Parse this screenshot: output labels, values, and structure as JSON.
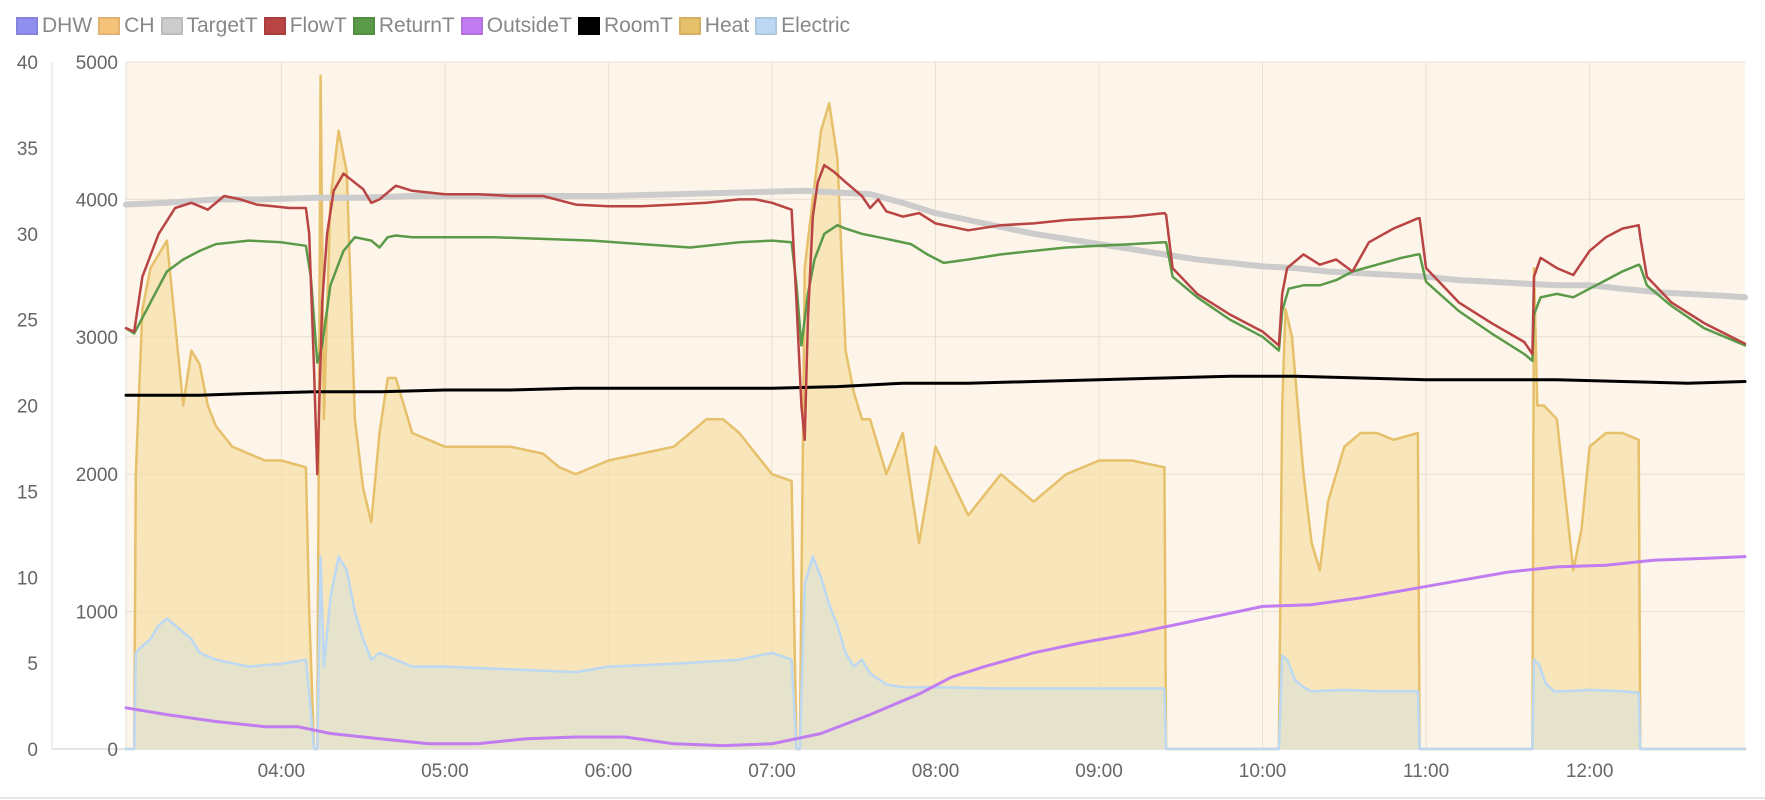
{
  "chart_data": {
    "type": "line",
    "legend_position": "top-left",
    "legend": [
      {
        "key": "dhw",
        "label": "DHW",
        "color": "#8f8fef"
      },
      {
        "key": "ch",
        "label": "CH",
        "color": "#f5c27a"
      },
      {
        "key": "target",
        "label": "TargetT",
        "color": "#cccccc"
      },
      {
        "key": "flow",
        "label": "FlowT",
        "color": "#b94444"
      },
      {
        "key": "return",
        "label": "ReturnT",
        "color": "#5a9a48"
      },
      {
        "key": "outside",
        "label": "OutsideT",
        "color": "#c07cf0"
      },
      {
        "key": "room",
        "label": "RoomT",
        "color": "#000000"
      },
      {
        "key": "heat",
        "label": "Heat",
        "color": "#e6c06a"
      },
      {
        "key": "electric",
        "label": "Electric",
        "color": "#bcd8f2"
      }
    ],
    "x_ticks": [
      "04:00",
      "05:00",
      "06:00",
      "07:00",
      "08:00",
      "09:00",
      "10:00",
      "11:00",
      "12:00"
    ],
    "x_range_hours": [
      3.05,
      12.95
    ],
    "y_left_temp": {
      "ticks": [
        0,
        5,
        10,
        15,
        20,
        25,
        30,
        35,
        40
      ],
      "range": [
        0,
        40
      ]
    },
    "y_left_power": {
      "ticks": [
        0,
        1000,
        2000,
        3000,
        4000,
        5000
      ],
      "range": [
        0,
        5000
      ]
    },
    "grid": true,
    "background_color": "#fdf5ea",
    "series": [
      {
        "name": "FlowT",
        "axis": "temp",
        "color": "#b94444",
        "x": [
          3.05,
          3.1,
          3.15,
          3.25,
          3.35,
          3.45,
          3.55,
          3.65,
          3.75,
          3.85,
          3.95,
          4.05,
          4.15,
          4.17,
          4.2,
          4.22,
          4.25,
          4.28,
          4.32,
          4.38,
          4.42,
          4.5,
          4.55,
          4.6,
          4.7,
          4.8,
          5.0,
          5.2,
          5.4,
          5.6,
          5.8,
          6.0,
          6.2,
          6.4,
          6.6,
          6.8,
          6.9,
          7.0,
          7.12,
          7.15,
          7.18,
          7.2,
          7.22,
          7.25,
          7.28,
          7.32,
          7.38,
          7.45,
          7.55,
          7.6,
          7.65,
          7.7,
          7.8,
          7.9,
          8.0,
          8.2,
          8.4,
          8.6,
          8.8,
          9.0,
          9.2,
          9.4,
          9.41,
          9.45,
          9.6,
          9.8,
          10.0,
          10.1,
          10.12,
          10.15,
          10.25,
          10.35,
          10.45,
          10.55,
          10.65,
          10.8,
          10.95,
          10.96,
          11.0,
          11.2,
          11.4,
          11.6,
          11.65,
          11.66,
          11.7,
          11.8,
          11.9,
          12.0,
          12.1,
          12.2,
          12.3,
          12.31,
          12.35,
          12.5,
          12.7,
          12.95
        ],
        "y": [
          24.5,
          24.3,
          27.5,
          30.0,
          31.5,
          31.8,
          31.4,
          32.2,
          32.0,
          31.7,
          31.6,
          31.5,
          31.5,
          30.0,
          22.0,
          16.0,
          26.0,
          30.0,
          32.5,
          33.5,
          33.2,
          32.6,
          31.8,
          32.0,
          32.8,
          32.5,
          32.3,
          32.3,
          32.2,
          32.2,
          31.7,
          31.6,
          31.6,
          31.7,
          31.8,
          32.0,
          32.0,
          31.8,
          31.4,
          26.0,
          20.0,
          18.0,
          25.0,
          31.0,
          33.0,
          34.0,
          33.6,
          33.0,
          32.2,
          31.5,
          32.0,
          31.3,
          31.0,
          31.2,
          30.6,
          30.2,
          30.5,
          30.6,
          30.8,
          30.9,
          31.0,
          31.2,
          31.1,
          28.0,
          26.5,
          25.3,
          24.3,
          23.5,
          26.5,
          28.0,
          28.8,
          28.2,
          28.5,
          27.8,
          29.5,
          30.3,
          30.9,
          30.9,
          28.0,
          26.0,
          24.8,
          23.7,
          23.0,
          27.5,
          28.6,
          28.0,
          27.6,
          29.0,
          29.8,
          30.3,
          30.5,
          29.8,
          27.5,
          26.0,
          24.8,
          23.6
        ]
      },
      {
        "name": "ReturnT",
        "axis": "temp",
        "color": "#5a9a48",
        "x": [
          3.05,
          3.1,
          3.2,
          3.3,
          3.4,
          3.5,
          3.6,
          3.8,
          4.0,
          4.15,
          4.18,
          4.22,
          4.25,
          4.3,
          4.38,
          4.45,
          4.55,
          4.6,
          4.65,
          4.7,
          4.8,
          5.0,
          5.3,
          5.6,
          5.9,
          6.2,
          6.5,
          6.8,
          7.0,
          7.12,
          7.15,
          7.18,
          7.22,
          7.26,
          7.32,
          7.4,
          7.45,
          7.55,
          7.65,
          7.75,
          7.85,
          7.95,
          8.05,
          8.2,
          8.4,
          8.6,
          8.8,
          9.0,
          9.2,
          9.4,
          9.41,
          9.45,
          9.6,
          9.8,
          10.0,
          10.1,
          10.12,
          10.16,
          10.25,
          10.35,
          10.45,
          10.55,
          10.7,
          10.85,
          10.95,
          10.96,
          11.0,
          11.2,
          11.4,
          11.6,
          11.65,
          11.66,
          11.7,
          11.8,
          11.9,
          12.0,
          12.1,
          12.2,
          12.3,
          12.31,
          12.35,
          12.5,
          12.7,
          12.95
        ],
        "y": [
          24.5,
          24.2,
          26.0,
          27.8,
          28.5,
          29.0,
          29.4,
          29.6,
          29.5,
          29.3,
          27.5,
          22.5,
          23.5,
          27.0,
          29.0,
          29.8,
          29.6,
          29.2,
          29.8,
          29.9,
          29.8,
          29.8,
          29.8,
          29.7,
          29.6,
          29.4,
          29.2,
          29.5,
          29.6,
          29.5,
          27.0,
          23.5,
          26.5,
          28.5,
          30.0,
          30.5,
          30.3,
          30.0,
          29.8,
          29.6,
          29.4,
          28.8,
          28.3,
          28.5,
          28.8,
          29.0,
          29.2,
          29.3,
          29.4,
          29.5,
          29.5,
          27.5,
          26.3,
          25.0,
          24.0,
          23.2,
          25.5,
          26.8,
          27.0,
          27.0,
          27.3,
          27.8,
          28.2,
          28.6,
          28.8,
          28.8,
          27.2,
          25.5,
          24.2,
          23.0,
          22.6,
          25.3,
          26.3,
          26.5,
          26.3,
          26.8,
          27.3,
          27.8,
          28.2,
          28.1,
          27.0,
          25.8,
          24.5,
          23.5
        ]
      },
      {
        "name": "TargetT",
        "axis": "temp",
        "color": "#cccccc",
        "x": [
          3.05,
          3.3,
          3.6,
          3.9,
          4.2,
          4.5,
          4.8,
          5.2,
          5.6,
          6.0,
          6.4,
          6.8,
          7.2,
          7.6,
          7.8,
          8.0,
          8.2,
          8.4,
          8.6,
          8.8,
          9.0,
          9.2,
          9.4,
          9.6,
          9.8,
          10.0,
          10.2,
          10.4,
          10.6,
          10.8,
          11.0,
          11.2,
          11.4,
          11.6,
          11.8,
          12.0,
          12.2,
          12.4,
          12.6,
          12.8,
          12.95
        ],
        "y": [
          31.7,
          31.8,
          32.0,
          32.0,
          32.1,
          32.1,
          32.2,
          32.2,
          32.2,
          32.2,
          32.3,
          32.4,
          32.5,
          32.3,
          31.8,
          31.2,
          30.8,
          30.4,
          30.0,
          29.7,
          29.4,
          29.1,
          28.8,
          28.5,
          28.3,
          28.1,
          28.0,
          27.8,
          27.7,
          27.6,
          27.5,
          27.3,
          27.2,
          27.1,
          27.0,
          27.0,
          26.8,
          26.6,
          26.5,
          26.4,
          26.3
        ]
      },
      {
        "name": "RoomT",
        "axis": "temp",
        "color": "#000000",
        "x": [
          3.05,
          3.5,
          3.8,
          4.2,
          4.6,
          5.0,
          5.4,
          5.8,
          6.2,
          6.6,
          7.0,
          7.4,
          7.8,
          8.2,
          8.6,
          9.0,
          9.4,
          9.8,
          10.2,
          10.6,
          11.0,
          11.4,
          11.8,
          12.2,
          12.6,
          12.95
        ],
        "y": [
          20.6,
          20.6,
          20.7,
          20.8,
          20.8,
          20.9,
          20.9,
          21.0,
          21.0,
          21.0,
          21.0,
          21.1,
          21.3,
          21.3,
          21.4,
          21.5,
          21.6,
          21.7,
          21.7,
          21.6,
          21.5,
          21.5,
          21.5,
          21.4,
          21.3,
          21.4
        ]
      },
      {
        "name": "OutsideT",
        "axis": "temp",
        "color": "#c07cf0",
        "x": [
          3.05,
          3.3,
          3.6,
          3.9,
          4.1,
          4.3,
          4.6,
          4.9,
          5.2,
          5.5,
          5.8,
          6.1,
          6.4,
          6.7,
          7.0,
          7.3,
          7.6,
          7.9,
          8.1,
          8.3,
          8.6,
          8.9,
          9.2,
          9.5,
          9.8,
          10.0,
          10.3,
          10.6,
          10.9,
          11.2,
          11.5,
          11.8,
          12.1,
          12.4,
          12.7,
          12.95
        ],
        "y": [
          2.4,
          2.0,
          1.6,
          1.3,
          1.3,
          0.9,
          0.6,
          0.3,
          0.3,
          0.6,
          0.7,
          0.7,
          0.3,
          0.2,
          0.3,
          0.9,
          2.0,
          3.2,
          4.2,
          4.8,
          5.6,
          6.2,
          6.7,
          7.3,
          7.9,
          8.3,
          8.4,
          8.8,
          9.3,
          9.8,
          10.3,
          10.6,
          10.7,
          11.0,
          11.1,
          11.2
        ]
      },
      {
        "name": "Heat",
        "axis": "power",
        "color": "#e6c06a",
        "fill": "#f6dfa8",
        "x": [
          3.05,
          3.1,
          3.11,
          3.15,
          3.2,
          3.25,
          3.3,
          3.35,
          3.4,
          3.45,
          3.5,
          3.55,
          3.6,
          3.7,
          3.8,
          3.9,
          4.0,
          4.15,
          4.17,
          4.2,
          4.22,
          4.24,
          4.26,
          4.3,
          4.35,
          4.4,
          4.45,
          4.5,
          4.55,
          4.6,
          4.65,
          4.7,
          4.8,
          5.0,
          5.2,
          5.4,
          5.6,
          5.7,
          5.8,
          6.0,
          6.2,
          6.4,
          6.6,
          6.7,
          6.8,
          6.9,
          7.0,
          7.12,
          7.15,
          7.17,
          7.2,
          7.25,
          7.3,
          7.35,
          7.4,
          7.45,
          7.5,
          7.55,
          7.6,
          7.7,
          7.8,
          7.9,
          8.0,
          8.2,
          8.4,
          8.6,
          8.8,
          9.0,
          9.2,
          9.4,
          9.41,
          9.45,
          9.6,
          9.8,
          10.0,
          10.1,
          10.12,
          10.14,
          10.18,
          10.25,
          10.3,
          10.35,
          10.4,
          10.45,
          10.5,
          10.6,
          10.7,
          10.8,
          10.95,
          10.96,
          10.98,
          11.2,
          11.4,
          11.6,
          11.65,
          11.66,
          11.68,
          11.72,
          11.8,
          11.9,
          11.95,
          12.0,
          12.1,
          12.2,
          12.3,
          12.31,
          12.33,
          12.5,
          12.7,
          12.95
        ],
        "y": [
          0,
          0,
          2000,
          3200,
          3500,
          3600,
          3700,
          3100,
          2500,
          2900,
          2800,
          2500,
          2350,
          2200,
          2150,
          2100,
          2100,
          2050,
          1000,
          0,
          0,
          4900,
          2400,
          4000,
          4500,
          4200,
          2400,
          1900,
          1650,
          2300,
          2700,
          2700,
          2300,
          2200,
          2200,
          2200,
          2150,
          2050,
          2000,
          2100,
          2150,
          2200,
          2400,
          2400,
          2300,
          2150,
          2000,
          1950,
          0,
          0,
          3500,
          4000,
          4500,
          4700,
          4300,
          2900,
          2600,
          2400,
          2400,
          2000,
          2300,
          1500,
          2200,
          1700,
          2000,
          1800,
          2000,
          2100,
          2100,
          2050,
          0,
          0,
          0,
          0,
          0,
          0,
          2500,
          3200,
          3000,
          2000,
          1500,
          1300,
          1800,
          2000,
          2200,
          2300,
          2300,
          2250,
          2300,
          0,
          0,
          0,
          0,
          0,
          0,
          3500,
          2500,
          2500,
          2400,
          1300,
          1600,
          2200,
          2300,
          2300,
          2250,
          0,
          0,
          0,
          0,
          0
        ]
      },
      {
        "name": "Electric",
        "axis": "power",
        "color": "#bcd8f2",
        "fill": "#dfe2d2",
        "x": [
          3.05,
          3.1,
          3.11,
          3.15,
          3.2,
          3.25,
          3.3,
          3.35,
          3.4,
          3.45,
          3.5,
          3.6,
          3.8,
          4.0,
          4.15,
          4.17,
          4.2,
          4.22,
          4.24,
          4.26,
          4.3,
          4.35,
          4.4,
          4.45,
          4.5,
          4.55,
          4.6,
          4.7,
          4.8,
          5.0,
          5.4,
          5.8,
          6.0,
          6.4,
          6.8,
          7.0,
          7.12,
          7.15,
          7.17,
          7.2,
          7.25,
          7.3,
          7.35,
          7.4,
          7.45,
          7.5,
          7.55,
          7.6,
          7.7,
          7.8,
          8.0,
          8.4,
          8.8,
          9.2,
          9.4,
          9.41,
          9.45,
          9.6,
          10.0,
          10.1,
          10.12,
          10.15,
          10.2,
          10.25,
          10.3,
          10.5,
          10.7,
          10.95,
          10.96,
          11.2,
          11.6,
          11.65,
          11.66,
          11.69,
          11.73,
          11.78,
          11.85,
          12.0,
          12.2,
          12.3,
          12.31,
          12.5,
          12.95
        ],
        "y": [
          0,
          0,
          700,
          750,
          800,
          900,
          950,
          900,
          850,
          800,
          700,
          650,
          600,
          620,
          650,
          400,
          0,
          0,
          1400,
          600,
          1100,
          1400,
          1300,
          1000,
          800,
          650,
          700,
          650,
          600,
          600,
          580,
          560,
          600,
          620,
          650,
          700,
          650,
          0,
          0,
          1200,
          1400,
          1250,
          1050,
          900,
          700,
          600,
          650,
          550,
          470,
          450,
          450,
          440,
          440,
          440,
          440,
          0,
          0,
          0,
          0,
          0,
          680,
          650,
          500,
          450,
          420,
          430,
          420,
          420,
          0,
          0,
          0,
          0,
          650,
          620,
          480,
          420,
          420,
          430,
          420,
          410,
          0,
          0,
          0
        ]
      }
    ]
  }
}
